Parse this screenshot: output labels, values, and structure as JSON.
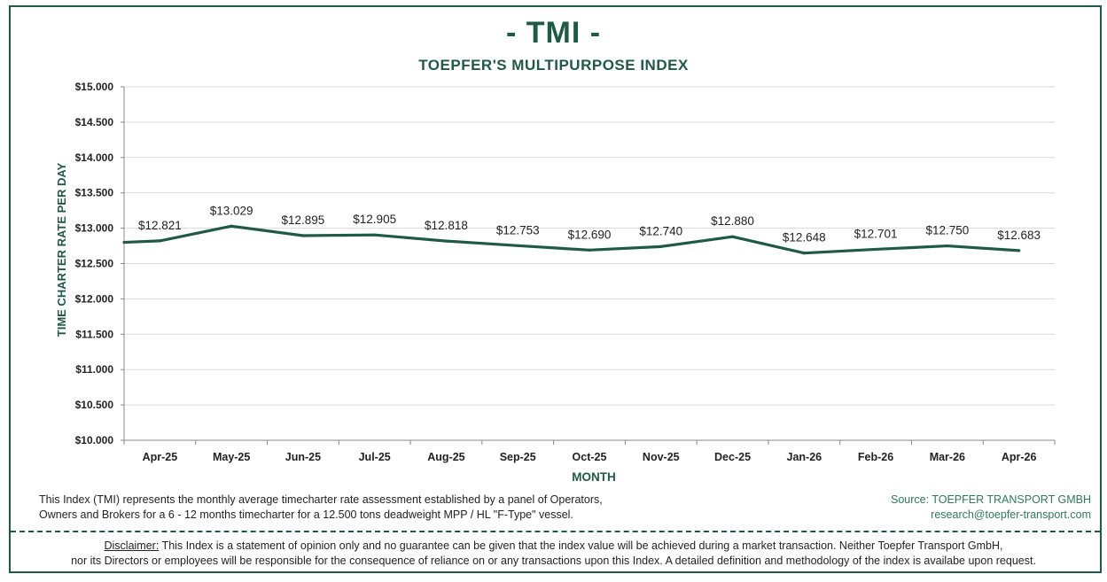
{
  "header": {
    "title": "- TMI -",
    "subtitle": "TOEPFER'S MULTIPURPOSE INDEX"
  },
  "chart_data": {
    "type": "line",
    "title": "TOEPFER'S MULTIPURPOSE INDEX",
    "xlabel": "MONTH",
    "ylabel": "TIME CHARTER RATE PER DAY",
    "ylim": [
      10000,
      15000
    ],
    "y_ticks": [
      10000,
      10500,
      11000,
      11500,
      12000,
      12500,
      13000,
      13500,
      14000,
      14500,
      15000
    ],
    "y_tick_labels": [
      "$10.000",
      "$10.500",
      "$11.000",
      "$11.500",
      "$12.000",
      "$12.500",
      "$13.000",
      "$13.500",
      "$14.000",
      "$14.500",
      "$15.000"
    ],
    "categories": [
      "Apr-25",
      "May-25",
      "Jun-25",
      "Jul-25",
      "Aug-25",
      "Sep-25",
      "Oct-25",
      "Nov-25",
      "Dec-25",
      "Jan-26",
      "Feb-26",
      "Mar-26",
      "Apr-26"
    ],
    "series": [
      {
        "name": "TMI",
        "values": [
          12821,
          13029,
          12895,
          12905,
          12818,
          12753,
          12690,
          12740,
          12880,
          12648,
          12701,
          12750,
          12683
        ],
        "labels": [
          "$12.821",
          "$13.029",
          "$12.895",
          "$12.905",
          "$12.818",
          "$12.753",
          "$12.690",
          "$12.740",
          "$12.880",
          "$12.648",
          "$12.701",
          "$12.750",
          "$12.683"
        ],
        "color": "#1f5a44"
      }
    ],
    "line_start_value": 12800,
    "grid": true,
    "legend": "none"
  },
  "footer": {
    "description_line1": "This Index (TMI) represents the monthly average timecharter rate assessment established by a panel of Operators,",
    "description_line2": "Owners and Brokers for a 6 - 12 months timecharter for a 12.500 tons deadweight MPP / HL \"F-Type\" vessel.",
    "source_line1": "Source: TOEPFER TRANSPORT GMBH",
    "source_line2": "research@toepfer-transport.com",
    "disclaimer_label": "Disclaimer:",
    "disclaimer_line1": " This Index is a statement of opinion only and no guarantee can be given that the index value will be achieved during a market transaction. Neither Toepfer Transport GmbH,",
    "disclaimer_line2": "nor its Directors or employees will be responsible for the consequence of reliance on or any transactions upon this Index.  A detailed definition and methodology of the index is availabe upon request."
  },
  "colors": {
    "brand": "#1f5a44",
    "source_text": "#2e7a5c",
    "grid": "#d9d9d9"
  }
}
